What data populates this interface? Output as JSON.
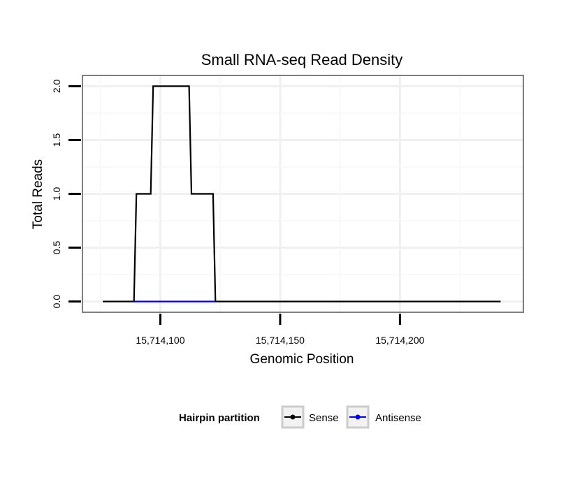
{
  "chart_data": {
    "type": "line",
    "title": "Small RNA-seq Read Density",
    "xlabel": "Genomic Position",
    "ylabel": "Total Reads",
    "xlim": [
      15714067.5,
      15714251.5
    ],
    "ylim": [
      -0.1,
      2.1
    ],
    "x_ticks": [
      {
        "value": 15714100,
        "label": "15,714,100"
      },
      {
        "value": 15714150,
        "label": "15,714,150"
      },
      {
        "value": 15714200,
        "label": "15,714,200"
      }
    ],
    "y_ticks": [
      {
        "value": 0.0,
        "label": "0.0"
      },
      {
        "value": 0.5,
        "label": "0.5"
      },
      {
        "value": 1.0,
        "label": "1.0"
      },
      {
        "value": 1.5,
        "label": "1.5"
      },
      {
        "value": 2.0,
        "label": "2.0"
      }
    ],
    "series": [
      {
        "name": "Sense",
        "color": "#000000",
        "x": [
          15714076,
          15714089,
          15714090,
          15714096,
          15714097,
          15714112,
          15714113,
          15714122,
          15714123,
          15714242
        ],
        "y": [
          0,
          0,
          1,
          1,
          2,
          2,
          1,
          1,
          0,
          0
        ]
      },
      {
        "name": "Antisense",
        "color": "#0000ff",
        "x": [
          15714089,
          15714123
        ],
        "y": [
          0,
          0
        ]
      }
    ],
    "legend": {
      "title": "Hairpin partition",
      "position": "bottom",
      "entries": [
        "Sense",
        "Antisense"
      ]
    },
    "grid": true
  }
}
